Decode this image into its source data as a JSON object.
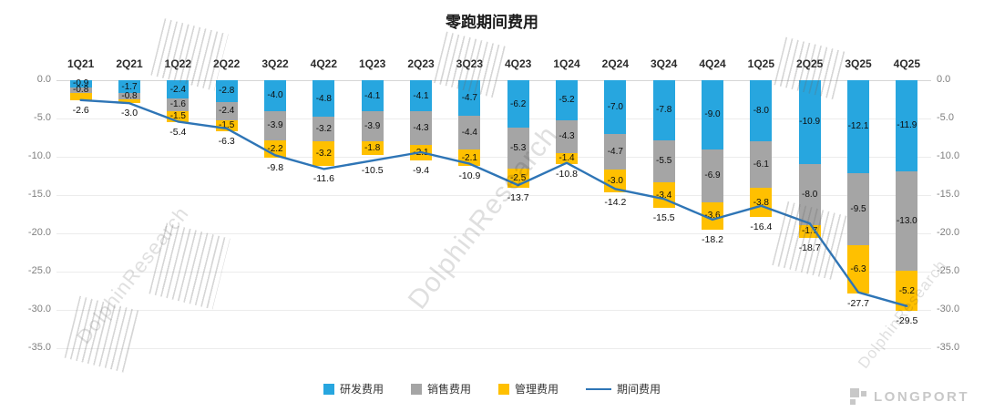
{
  "title": "零跑期间费用",
  "y_axis": {
    "min": -35,
    "max": 0,
    "step": 5,
    "ticks": [
      "0.0",
      "-5.0",
      "-10.0",
      "-15.0",
      "-20.0",
      "-25.0",
      "-30.0",
      "-35.0"
    ]
  },
  "chart_data": {
    "type": "bar",
    "subtype": "stacked-bar-with-line",
    "title": "零跑期间费用",
    "categories": [
      "1Q21",
      "2Q21",
      "1Q22",
      "2Q22",
      "3Q22",
      "4Q22",
      "1Q23",
      "2Q23",
      "3Q23",
      "4Q23",
      "1Q24",
      "2Q24",
      "3Q24",
      "4Q24",
      "1Q25",
      "2Q25",
      "3Q25",
      "4Q25"
    ],
    "ylim": [
      -35,
      0
    ],
    "grid": "horizontal-light",
    "legend_position": "bottom-center",
    "series": [
      {
        "name": "研发费用",
        "type": "bar",
        "color": "#27A6DF",
        "values": [
          -0.9,
          -1.7,
          -2.4,
          -2.8,
          -4.0,
          -4.8,
          -4.1,
          -4.1,
          -4.7,
          -6.2,
          -5.2,
          -7.0,
          -7.8,
          -9.0,
          -8.0,
          -10.9,
          -12.1,
          -11.9
        ],
        "labels": [
          "-0.9",
          "-1.7",
          "-2.4",
          "-2.8",
          "-4.0",
          "-4.8",
          "-4.1",
          "-4.1",
          "-4.7",
          "-6.2",
          "-5.2",
          "-7.0",
          "-7.8",
          "-9.0",
          "-8.0",
          "-10.9",
          "-12.1",
          "-11.9"
        ]
      },
      {
        "name": "销售费用",
        "type": "bar",
        "color": "#A5A5A5",
        "values": [
          -0.8,
          -0.8,
          -1.6,
          -2.4,
          -3.9,
          -3.2,
          -3.9,
          -4.3,
          -4.4,
          -5.3,
          -4.3,
          -4.7,
          -5.5,
          -6.9,
          -6.1,
          -8.0,
          -9.5,
          -13.0
        ],
        "labels": [
          "-0.8",
          "-0.8",
          "-1.6",
          "-2.4",
          "-3.9",
          "-3.2",
          "-3.9",
          "-4.3",
          "-4.4",
          "-5.3",
          "-4.3",
          "-4.7",
          "-5.5",
          "-6.9",
          "-6.1",
          "-8.0",
          "-9.5",
          "-13.0"
        ]
      },
      {
        "name": "管理费用",
        "type": "bar",
        "color": "#FFC000",
        "values": [
          -0.9,
          -0.5,
          -1.5,
          -1.5,
          -2.2,
          -3.2,
          -1.8,
          -2.1,
          -2.1,
          -2.5,
          -1.4,
          -3.0,
          -3.4,
          -3.6,
          -3.8,
          -1.7,
          -6.3,
          -5.2
        ],
        "labels": [
          "",
          "",
          "-1.5",
          "-1.5",
          "-2.2",
          "-3.2",
          "-1.8",
          "-2.1",
          "-2.1",
          "-2.5",
          "-1.4",
          "-3.0",
          "-3.4",
          "-3.6",
          "-3.8",
          "-1.7",
          "-6.3",
          "-5.2"
        ]
      },
      {
        "name": "期间费用",
        "type": "line",
        "color": "#2E75B6",
        "values": [
          -2.6,
          -3.0,
          -5.4,
          -6.3,
          -9.8,
          -11.6,
          -10.5,
          -9.4,
          -10.9,
          -13.7,
          -10.8,
          -14.2,
          -15.5,
          -18.2,
          -16.4,
          -18.7,
          -27.7,
          -29.5
        ],
        "labels": [
          "-2.6",
          "-3.0",
          "-5.4",
          "-6.3",
          "-9.8",
          "-11.6",
          "-10.5",
          "-9.4",
          "-10.9",
          "-13.7",
          "-10.8",
          "-14.2",
          "-15.5",
          "-18.2",
          "-16.4",
          "-18.7",
          "-27.7",
          "-29.5"
        ]
      }
    ]
  },
  "legend": {
    "items": [
      {
        "label": "研发费用",
        "color": "#27A6DF",
        "shape": "square"
      },
      {
        "label": "销售费用",
        "color": "#A5A5A5",
        "shape": "square"
      },
      {
        "label": "管理费用",
        "color": "#FFC000",
        "shape": "square"
      },
      {
        "label": "期间费用",
        "color": "#2E75B6",
        "shape": "line"
      }
    ]
  },
  "watermark": {
    "text": "DolphinResearch"
  },
  "brand": {
    "name": "LONGPORT"
  }
}
